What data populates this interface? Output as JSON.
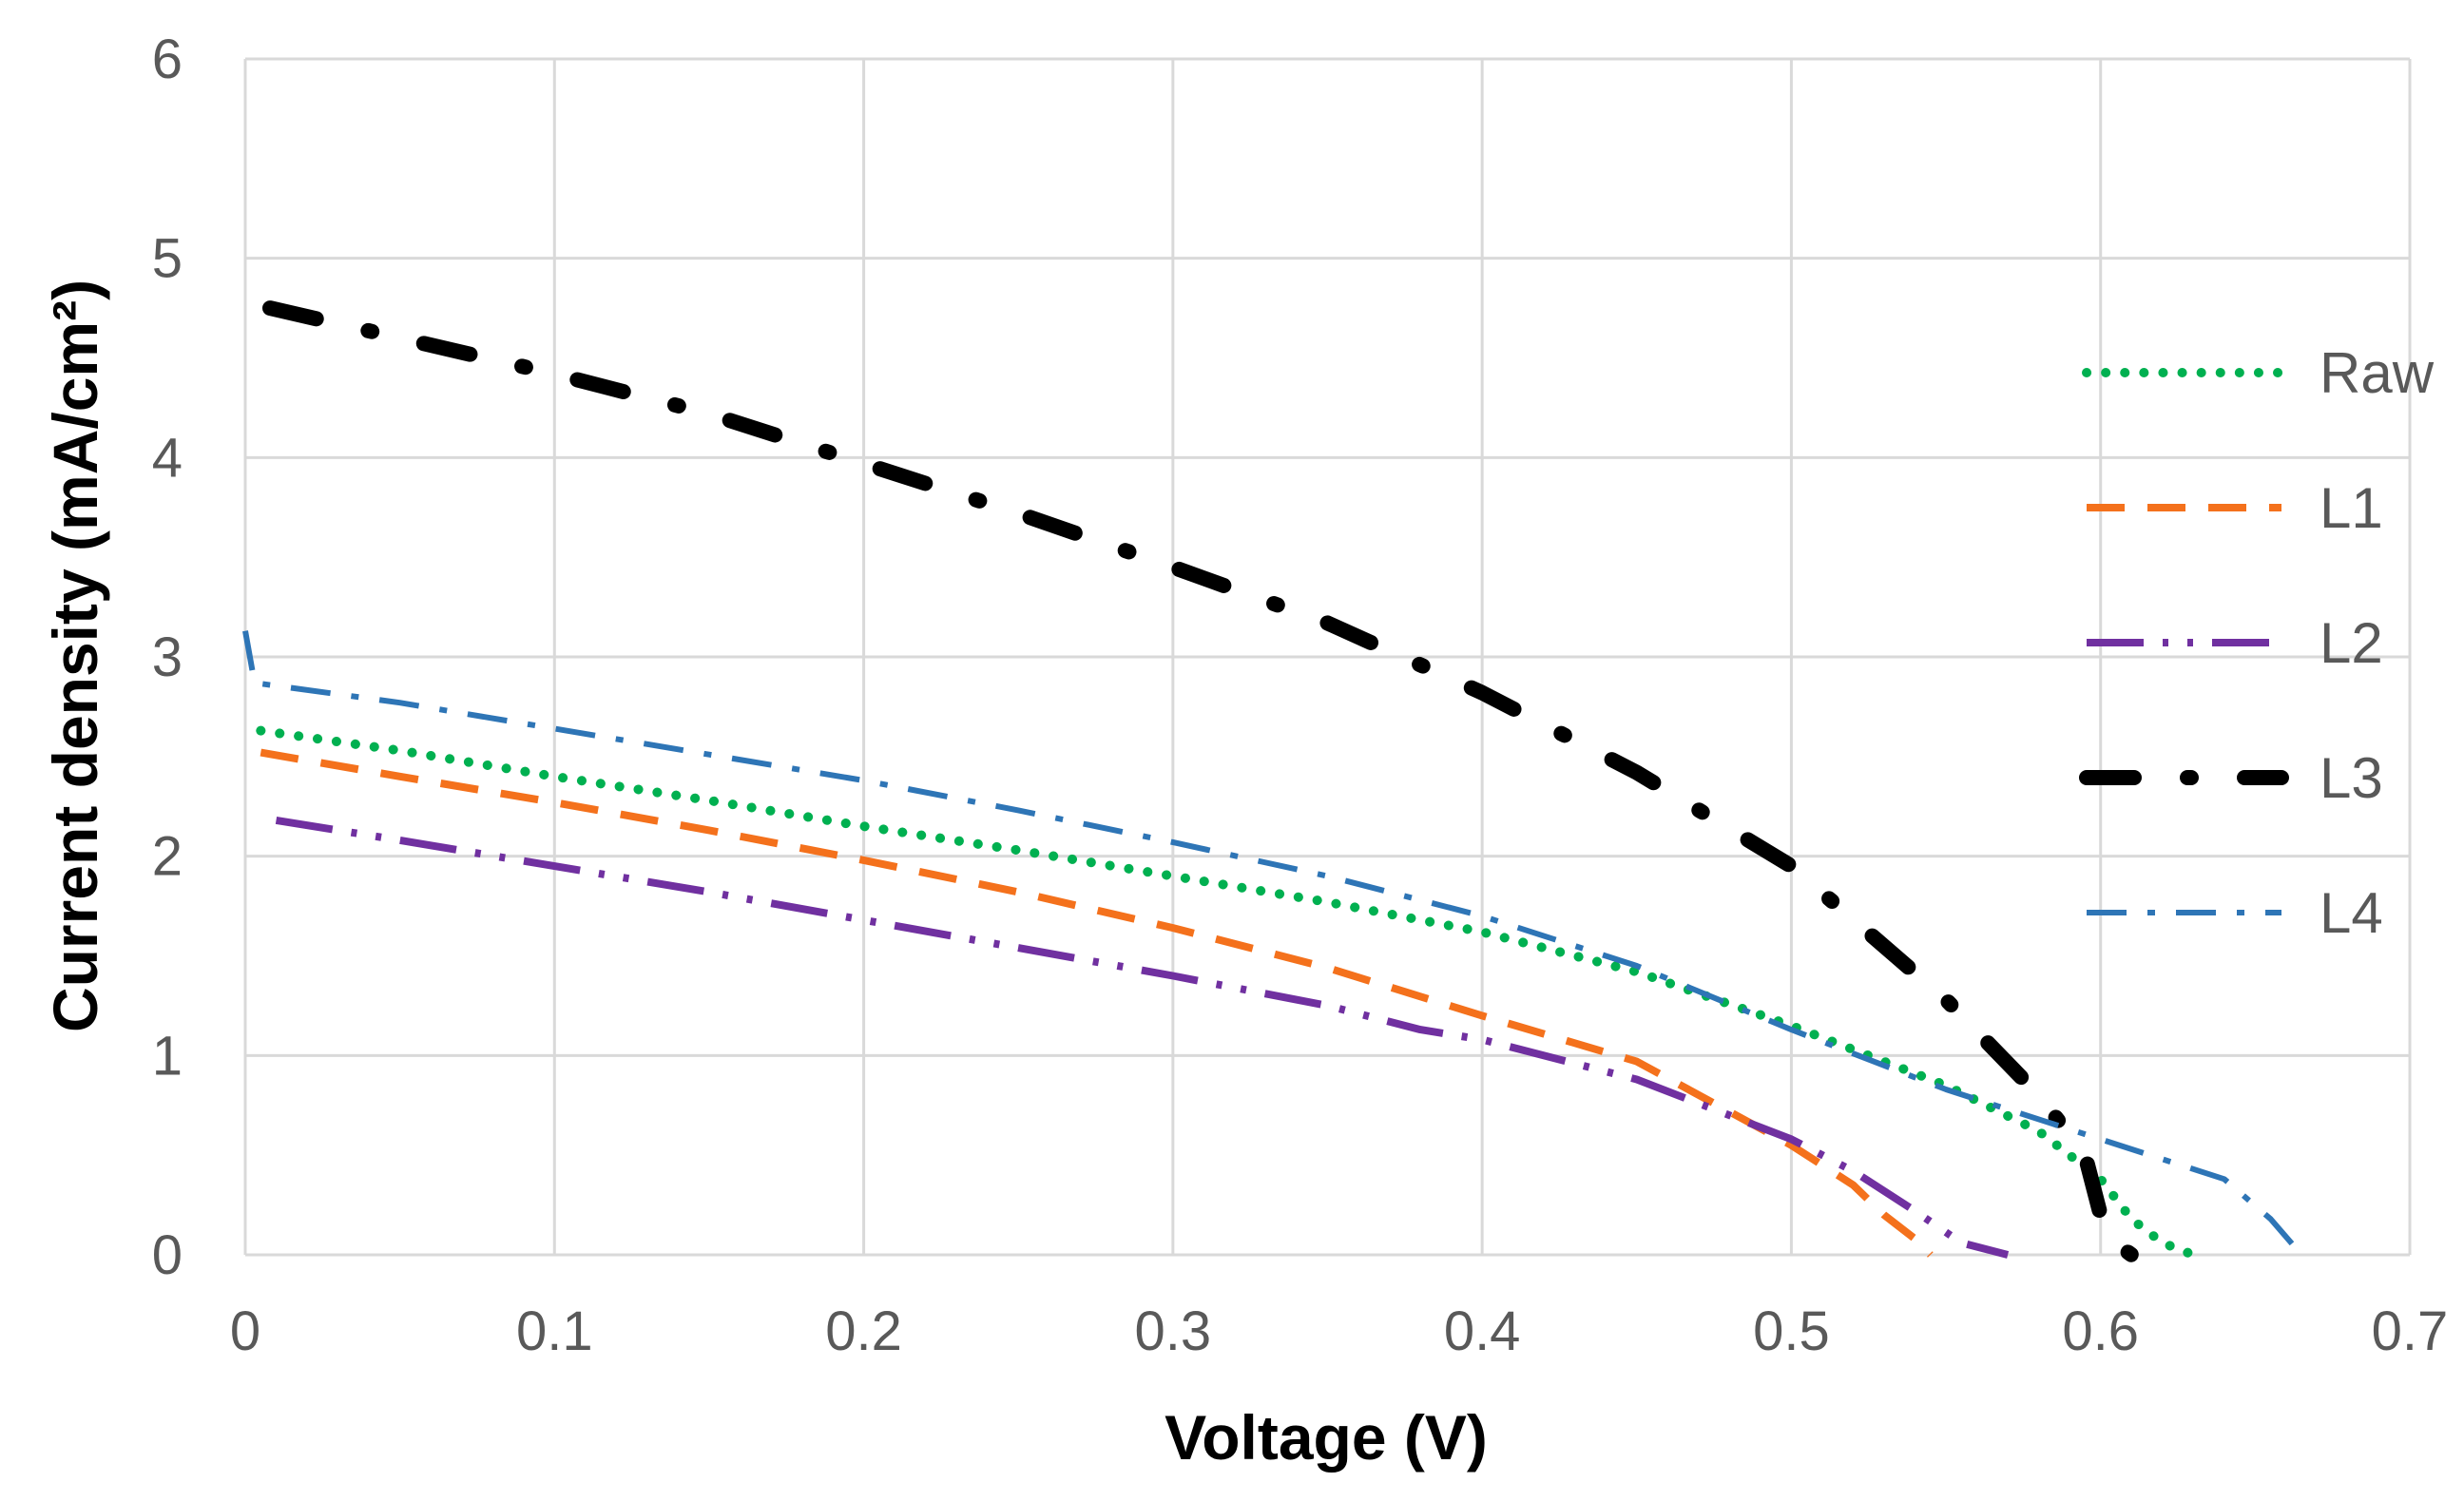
{
  "chart_data": {
    "type": "line",
    "title": "",
    "xlabel": "Voltage (V)",
    "ylabel": "Current density (mA/cm²)",
    "xlim": [
      0,
      0.7
    ],
    "ylim": [
      0,
      6
    ],
    "grid": true,
    "legend_position": "right",
    "x_ticks": [
      "0",
      "0.1",
      "0.2",
      "0.3",
      "0.4",
      "0.5",
      "0.6",
      "0.7"
    ],
    "y_ticks": [
      "0",
      "1",
      "2",
      "3",
      "4",
      "5",
      "6"
    ],
    "series": [
      {
        "name": "Raw",
        "color": "#00b050",
        "style": "dotted",
        "points": [
          [
            0.005,
            2.63
          ],
          [
            0.05,
            2.53
          ],
          [
            0.1,
            2.4
          ],
          [
            0.15,
            2.28
          ],
          [
            0.2,
            2.15
          ],
          [
            0.25,
            2.03
          ],
          [
            0.3,
            1.9
          ],
          [
            0.35,
            1.77
          ],
          [
            0.4,
            1.62
          ],
          [
            0.45,
            1.42
          ],
          [
            0.5,
            1.15
          ],
          [
            0.55,
            0.85
          ],
          [
            0.58,
            0.62
          ],
          [
            0.6,
            0.38
          ],
          [
            0.61,
            0.18
          ],
          [
            0.62,
            0.06
          ],
          [
            0.63,
            0.0
          ]
        ]
      },
      {
        "name": "L1",
        "color": "#f4711c",
        "style": "dashed",
        "points": [
          [
            0.005,
            2.52
          ],
          [
            0.05,
            2.4
          ],
          [
            0.1,
            2.27
          ],
          [
            0.15,
            2.13
          ],
          [
            0.2,
            1.98
          ],
          [
            0.25,
            1.82
          ],
          [
            0.3,
            1.64
          ],
          [
            0.35,
            1.44
          ],
          [
            0.4,
            1.2
          ],
          [
            0.45,
            0.97
          ],
          [
            0.5,
            0.55
          ],
          [
            0.52,
            0.35
          ],
          [
            0.53,
            0.2
          ],
          [
            0.54,
            0.08
          ],
          [
            0.545,
            0.0
          ]
        ]
      },
      {
        "name": "L2",
        "color": "#7030a0",
        "style": "long-dash-dot-dot",
        "points": [
          [
            0.01,
            2.18
          ],
          [
            0.05,
            2.08
          ],
          [
            0.1,
            1.95
          ],
          [
            0.15,
            1.82
          ],
          [
            0.2,
            1.68
          ],
          [
            0.25,
            1.54
          ],
          [
            0.3,
            1.4
          ],
          [
            0.35,
            1.25
          ],
          [
            0.38,
            1.13
          ],
          [
            0.4,
            1.08
          ],
          [
            0.45,
            0.88
          ],
          [
            0.5,
            0.58
          ],
          [
            0.52,
            0.42
          ],
          [
            0.54,
            0.22
          ],
          [
            0.555,
            0.06
          ],
          [
            0.57,
            0.0
          ]
        ]
      },
      {
        "name": "L3",
        "color": "#000000",
        "style": "thick-dash-dot",
        "points": [
          [
            0.008,
            4.75
          ],
          [
            0.05,
            4.6
          ],
          [
            0.1,
            4.42
          ],
          [
            0.15,
            4.22
          ],
          [
            0.2,
            3.97
          ],
          [
            0.25,
            3.72
          ],
          [
            0.3,
            3.45
          ],
          [
            0.35,
            3.17
          ],
          [
            0.4,
            2.82
          ],
          [
            0.45,
            2.42
          ],
          [
            0.5,
            1.95
          ],
          [
            0.55,
            1.28
          ],
          [
            0.58,
            0.8
          ],
          [
            0.595,
            0.5
          ],
          [
            0.6,
            0.2
          ],
          [
            0.603,
            0.08
          ],
          [
            0.61,
            0.0
          ]
        ]
      },
      {
        "name": "L4",
        "color": "#2e75b6",
        "style": "dash-dot",
        "points": [
          [
            0.0,
            3.13
          ],
          [
            0.003,
            2.87
          ],
          [
            0.05,
            2.77
          ],
          [
            0.1,
            2.64
          ],
          [
            0.15,
            2.51
          ],
          [
            0.2,
            2.38
          ],
          [
            0.25,
            2.23
          ],
          [
            0.3,
            2.07
          ],
          [
            0.35,
            1.9
          ],
          [
            0.4,
            1.7
          ],
          [
            0.45,
            1.45
          ],
          [
            0.5,
            1.13
          ],
          [
            0.55,
            0.83
          ],
          [
            0.6,
            0.58
          ],
          [
            0.64,
            0.38
          ],
          [
            0.655,
            0.18
          ],
          [
            0.665,
            0.0
          ]
        ]
      }
    ]
  }
}
